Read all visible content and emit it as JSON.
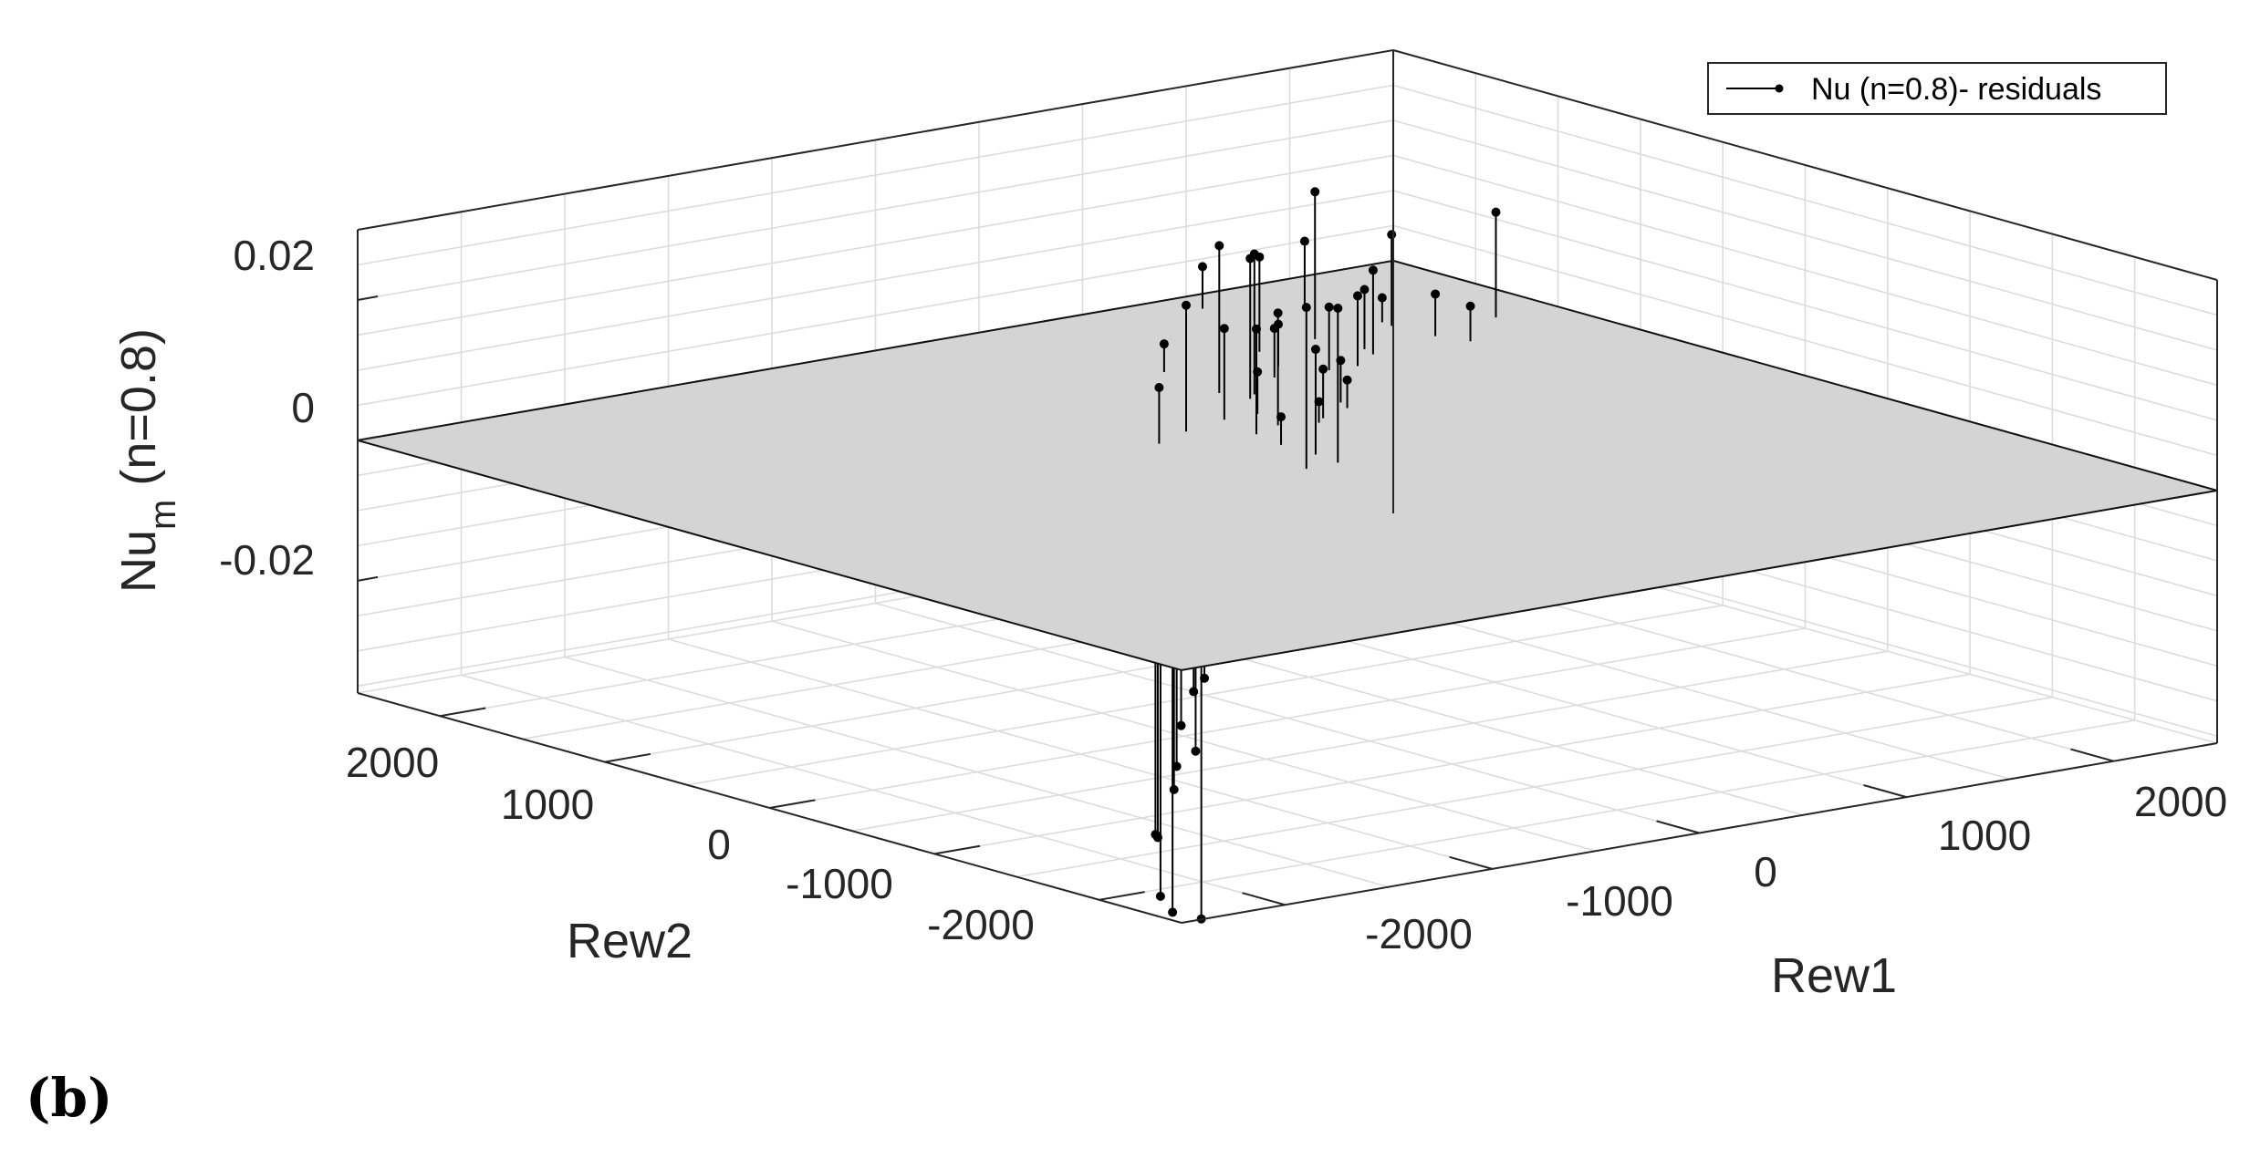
{
  "panel_label": "(b)",
  "chart_data": {
    "type": "scatter",
    "subtype": "3d-stem-residuals-over-zero-plane",
    "legend": {
      "entries": [
        "Nu (n=0.8)- residuals"
      ],
      "position": "top-right"
    },
    "xlabel": "Rew1",
    "ylabel": "Rew2",
    "zlabel_main": "Nu",
    "zlabel_sub": "m",
    "zlabel_rest": " (n=0.8)",
    "x_ticks": [
      "-2000",
      "-1000",
      "0",
      "1000",
      "2000"
    ],
    "y_ticks": [
      "-2000",
      "-1000",
      "0",
      "1000",
      "2000"
    ],
    "z_ticks": [
      "-0.02",
      "0",
      "0.02"
    ],
    "xlim": [
      -2500,
      2500
    ],
    "ylim": [
      -2500,
      2500
    ],
    "zlim": [
      -0.036,
      0.03
    ],
    "grid": true,
    "colors": {
      "plane": "#d4d4d4",
      "stem": "#000000",
      "marker": "#000000",
      "grid": "#dcdcdc"
    },
    "series": [
      {
        "name": "Nu (n=0.8)- residuals",
        "points": [
          [
            1420,
            2300,
            0.006
          ],
          [
            1770,
            2120,
            0.009
          ],
          [
            1800,
            1630,
            0.013
          ],
          [
            1810,
            1700,
            0.0035
          ],
          [
            1830,
            1850,
            -0.003
          ],
          [
            2200,
            1500,
            0.015
          ],
          [
            1820,
            1390,
            0.006
          ],
          [
            1430,
            1630,
            0.021
          ],
          [
            1870,
            1240,
            0.005
          ],
          [
            1470,
            1380,
            0.0085
          ],
          [
            1440,
            1290,
            0.012
          ],
          [
            1130,
            1590,
            0.0135
          ],
          [
            1270,
            1170,
            0.01
          ],
          [
            1620,
            1140,
            -0.005
          ],
          [
            1140,
            1180,
            0.009
          ],
          [
            1030,
            1350,
            0.006
          ],
          [
            900,
            1210,
            0.007
          ],
          [
            1210,
            1020,
            -0.0075
          ],
          [
            630,
            1540,
            0.004
          ],
          [
            1110,
            770,
            -0.0045
          ],
          [
            960,
            910,
            -0.0035
          ],
          [
            660,
            1030,
            0.02
          ],
          [
            570,
            1130,
            0.021
          ],
          [
            600,
            980,
            0.02
          ],
          [
            830,
            720,
            0.006
          ],
          [
            790,
            630,
            0.004
          ],
          [
            460,
            760,
            0.006
          ],
          [
            610,
            550,
            0.007
          ],
          [
            550,
            500,
            0.003
          ],
          [
            300,
            760,
            0.013
          ],
          [
            400,
            560,
            0.016
          ],
          [
            240,
            490,
            0.015
          ],
          [
            60,
            690,
            0.018
          ],
          [
            200,
            290,
            0.004
          ],
          [
            -150,
            590,
            0.008
          ],
          [
            -40,
            370,
            -0.001
          ],
          [
            -60,
            280,
            -0.002
          ],
          [
            70,
            170,
            -0.005
          ],
          [
            -60,
            40,
            -0.0045
          ],
          [
            200,
            80,
            0.015
          ],
          [
            180,
            -80,
            0.022
          ],
          [
            20,
            -90,
            0.023
          ],
          [
            -20,
            -160,
            -0.008
          ],
          [
            -320,
            -50,
            -0.012
          ],
          [
            -560,
            -130,
            -0.013
          ],
          [
            -140,
            -350,
            -0.021
          ],
          [
            -380,
            -380,
            -0.018
          ],
          [
            -630,
            -550,
            -0.02
          ],
          [
            -870,
            -590,
            -0.022
          ],
          [
            -970,
            -650,
            -0.023
          ],
          [
            -1000,
            -700,
            -0.031
          ],
          [
            -1070,
            -700,
            -0.027
          ],
          [
            -1120,
            -950,
            -0.015
          ],
          [
            -1140,
            -970,
            -0.008
          ],
          [
            -1370,
            -1050,
            -0.029
          ],
          [
            -1560,
            -1160,
            -0.037
          ],
          [
            -1550,
            -1260,
            -0.03
          ],
          [
            -1660,
            -1300,
            -0.036
          ],
          [
            -1740,
            -1490,
            -0.045
          ],
          [
            -1830,
            -1530,
            -0.042
          ],
          [
            -1800,
            -1740,
            -0.044
          ]
        ]
      }
    ]
  }
}
